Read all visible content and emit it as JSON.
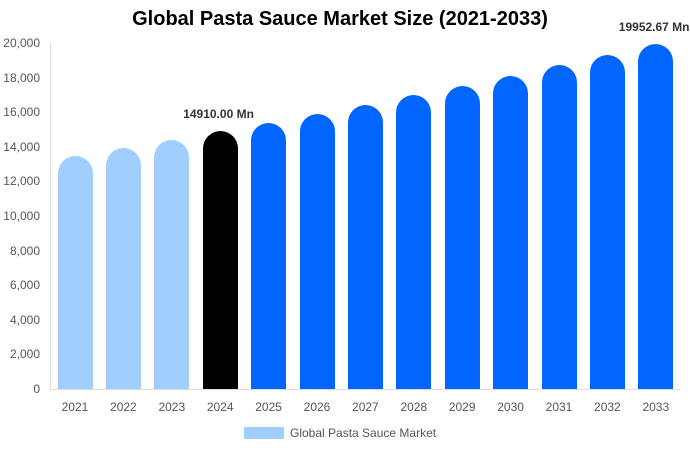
{
  "chart_data": {
    "type": "bar",
    "title": "Global Pasta Sauce Market Size (2021-2033)",
    "xlabel": "",
    "ylabel": "",
    "ylim": [
      0,
      20000
    ],
    "yticks": [
      "0",
      "2,000",
      "4,000",
      "6,000",
      "8,000",
      "10,000",
      "12,000",
      "14,000",
      "16,000",
      "18,000",
      "20,000"
    ],
    "grid": false,
    "legend_position": "bottom",
    "categories": [
      "2021",
      "2022",
      "2023",
      "2024",
      "2025",
      "2026",
      "2027",
      "2028",
      "2029",
      "2030",
      "2031",
      "2032",
      "2033"
    ],
    "series": [
      {
        "name": "Global Pasta Sauce Market",
        "values": [
          13470,
          13930,
          14390,
          14910,
          15400,
          15910,
          16440,
          16980,
          17540,
          18120,
          18720,
          19330,
          19952.67
        ],
        "colors": [
          "#a0cfff",
          "#a0cfff",
          "#a0cfff",
          "#000000",
          "#0066ff",
          "#0066ff",
          "#0066ff",
          "#0066ff",
          "#0066ff",
          "#0066ff",
          "#0066ff",
          "#0066ff",
          "#0066ff"
        ]
      }
    ],
    "annotations": [
      {
        "category": "2024",
        "text": "14910.00 Mn"
      },
      {
        "category": "2033",
        "text": "19952.67 Mn"
      }
    ],
    "legend": [
      {
        "label": "Global Pasta Sauce Market",
        "color": "#a0cfff"
      }
    ]
  }
}
